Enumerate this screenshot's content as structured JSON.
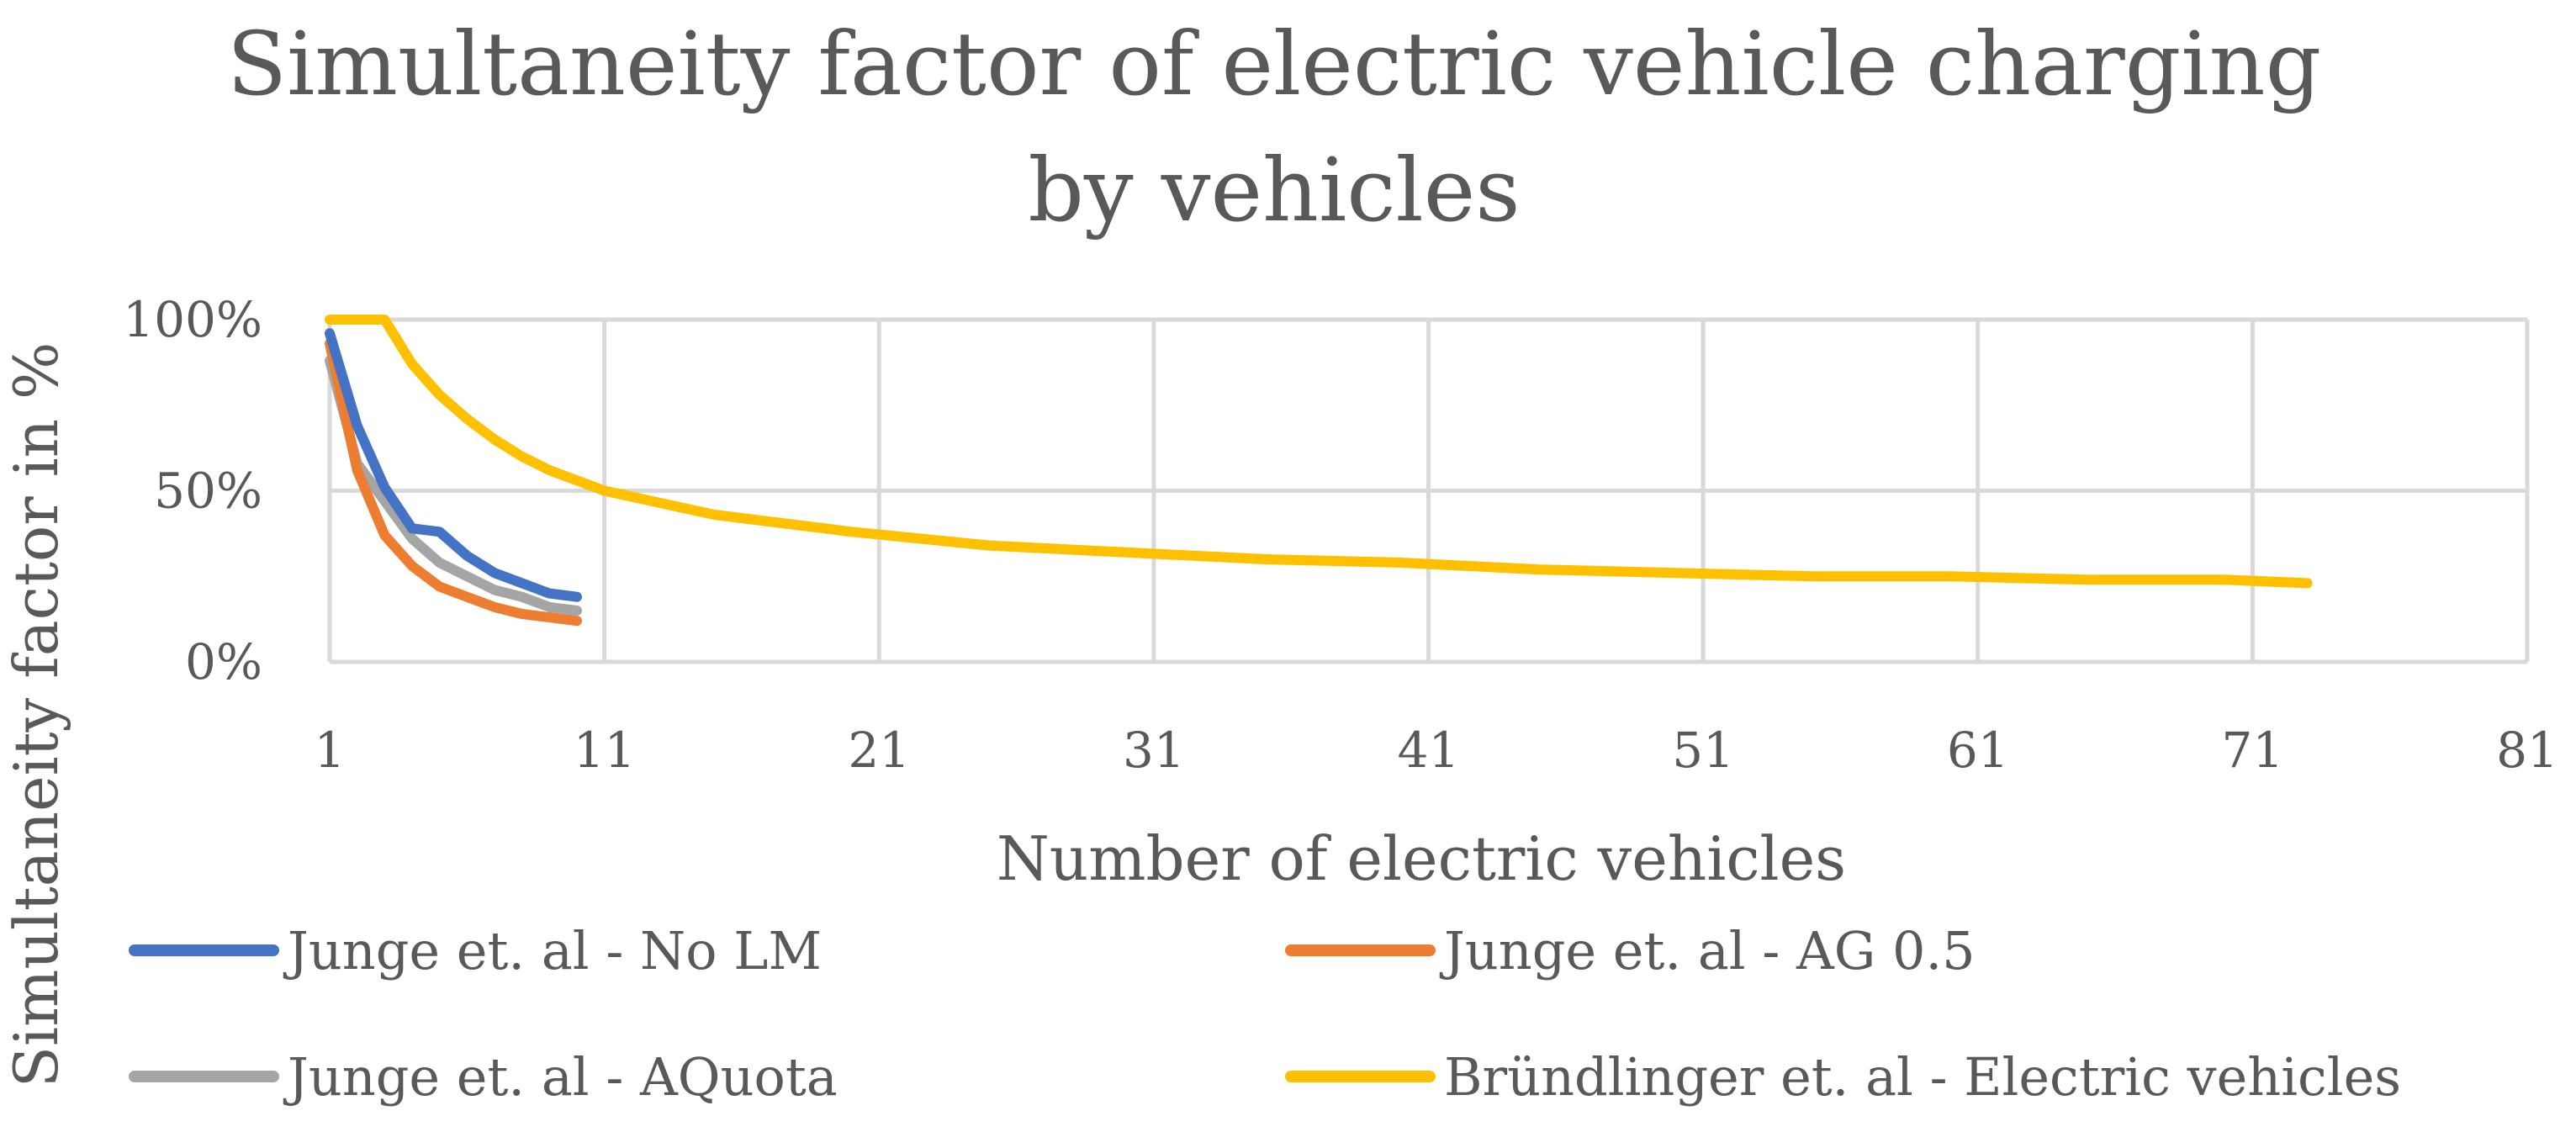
{
  "chart_data": {
    "type": "line",
    "title_lines": [
      "Simultaneity factor of electric vehicle charging",
      "by vehicles"
    ],
    "xlabel": "Number of electric vehicles",
    "ylabel": "Simultaneity factor in %",
    "xlim": [
      1,
      81
    ],
    "ylim": [
      0,
      100
    ],
    "x_ticks": [
      1,
      11,
      21,
      31,
      41,
      51,
      61,
      71,
      81
    ],
    "x_tick_labels": [
      "1",
      "11",
      "21",
      "31",
      "41",
      "51",
      "61",
      "71",
      "81"
    ],
    "y_ticks": [
      0,
      50,
      100
    ],
    "y_tick_labels": [
      "0%",
      "50%",
      "100%"
    ],
    "grid": true,
    "legend_position": "bottom",
    "series": [
      {
        "name": "Junge et. al - No LM",
        "color": "#4472C4",
        "x": [
          1,
          2,
          3,
          4,
          5,
          6,
          7,
          8,
          9,
          10
        ],
        "y": [
          96,
          69,
          51,
          39,
          38,
          31,
          26,
          23,
          20,
          19
        ]
      },
      {
        "name": "Junge et. al - AG 0.5",
        "color": "#ED7D31",
        "x": [
          1,
          2,
          3,
          4,
          5,
          6,
          7,
          8,
          9,
          10
        ],
        "y": [
          93,
          56,
          37,
          28,
          22,
          19,
          16,
          14,
          13,
          12
        ]
      },
      {
        "name": "Junge et. al - AQuota",
        "color": "#A5A5A5",
        "x": [
          1,
          2,
          3,
          4,
          5,
          6,
          7,
          8,
          9,
          10
        ],
        "y": [
          88,
          58,
          47,
          36,
          29,
          25,
          21,
          19,
          16,
          15
        ]
      },
      {
        "name": "Bründlinger et. al - Electric vehicles",
        "color": "#FFC000",
        "x": [
          1,
          2,
          3,
          4,
          5,
          6,
          7,
          8,
          9,
          10,
          11,
          15,
          20,
          25,
          30,
          35,
          40,
          45,
          50,
          55,
          60,
          65,
          70,
          73
        ],
        "y": [
          100,
          100,
          100,
          87,
          78,
          71,
          65,
          60,
          56,
          53,
          50,
          43,
          38,
          34,
          32,
          30,
          29,
          27,
          26,
          25,
          25,
          24,
          24,
          23
        ]
      }
    ]
  }
}
